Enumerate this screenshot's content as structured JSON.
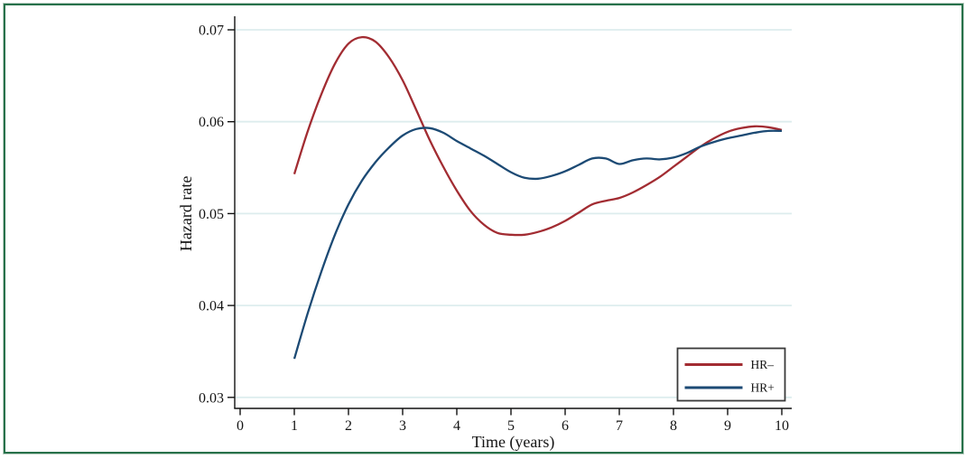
{
  "figure": {
    "frame_color": "#27714a",
    "background_color": "#ffffff"
  },
  "chart_data": {
    "type": "line",
    "title": "",
    "xlabel": "Time (years)",
    "ylabel": "Hazard rate",
    "xlim": [
      0,
      10
    ],
    "ylim": [
      0.03,
      0.07
    ],
    "x_ticks": [
      0,
      1,
      2,
      3,
      4,
      5,
      6,
      7,
      8,
      9,
      10
    ],
    "x_tick_labels": [
      "0",
      "1",
      "2",
      "3",
      "4",
      "5",
      "6",
      "7",
      "8",
      "9",
      "10"
    ],
    "y_ticks": [
      0.03,
      0.04,
      0.05,
      0.06,
      0.07
    ],
    "y_tick_labels": [
      "0.03",
      "0.04",
      "0.05",
      "0.06",
      "0.07"
    ],
    "grid": "horizontal-only",
    "gridline_color": "#ddedee",
    "axis_color": "#111111",
    "x": [
      1,
      1.25,
      1.5,
      1.75,
      2,
      2.25,
      2.5,
      2.75,
      3,
      3.25,
      3.5,
      3.75,
      4,
      4.25,
      4.5,
      4.75,
      5,
      5.25,
      5.5,
      5.75,
      6,
      6.25,
      6.5,
      6.75,
      7,
      7.25,
      7.5,
      7.75,
      8,
      8.25,
      8.5,
      8.75,
      9,
      9.25,
      9.5,
      9.75,
      10
    ],
    "series": [
      {
        "name": "HR–",
        "color": "#a22c32",
        "values": [
          0.0543,
          0.059,
          0.063,
          0.0663,
          0.0685,
          0.0692,
          0.0687,
          0.067,
          0.0645,
          0.0613,
          0.058,
          0.0551,
          0.0525,
          0.0503,
          0.0488,
          0.0479,
          0.0477,
          0.0477,
          0.048,
          0.0485,
          0.0492,
          0.0501,
          0.051,
          0.0514,
          0.0517,
          0.0523,
          0.0531,
          0.054,
          0.0551,
          0.0562,
          0.0573,
          0.0582,
          0.0589,
          0.0593,
          0.0595,
          0.0594,
          0.0591
        ]
      },
      {
        "name": "HR+",
        "color": "#1c4a74",
        "values": [
          0.0342,
          0.0392,
          0.0437,
          0.0477,
          0.051,
          0.0536,
          0.0556,
          0.0572,
          0.0585,
          0.0592,
          0.0593,
          0.0588,
          0.0579,
          0.0571,
          0.0563,
          0.0554,
          0.0545,
          0.0539,
          0.0538,
          0.0541,
          0.0546,
          0.0553,
          0.056,
          0.056,
          0.0554,
          0.0558,
          0.056,
          0.0559,
          0.0561,
          0.0566,
          0.0573,
          0.0578,
          0.0582,
          0.0585,
          0.0588,
          0.059,
          0.059
        ]
      }
    ],
    "legend": {
      "position": "bottom-right-inside",
      "border_color": "#3a3a3a",
      "background": "#ffffff",
      "entries": [
        {
          "label": "HR–",
          "color": "#a22c32"
        },
        {
          "label": "HR+",
          "color": "#1c4a74"
        }
      ]
    }
  }
}
